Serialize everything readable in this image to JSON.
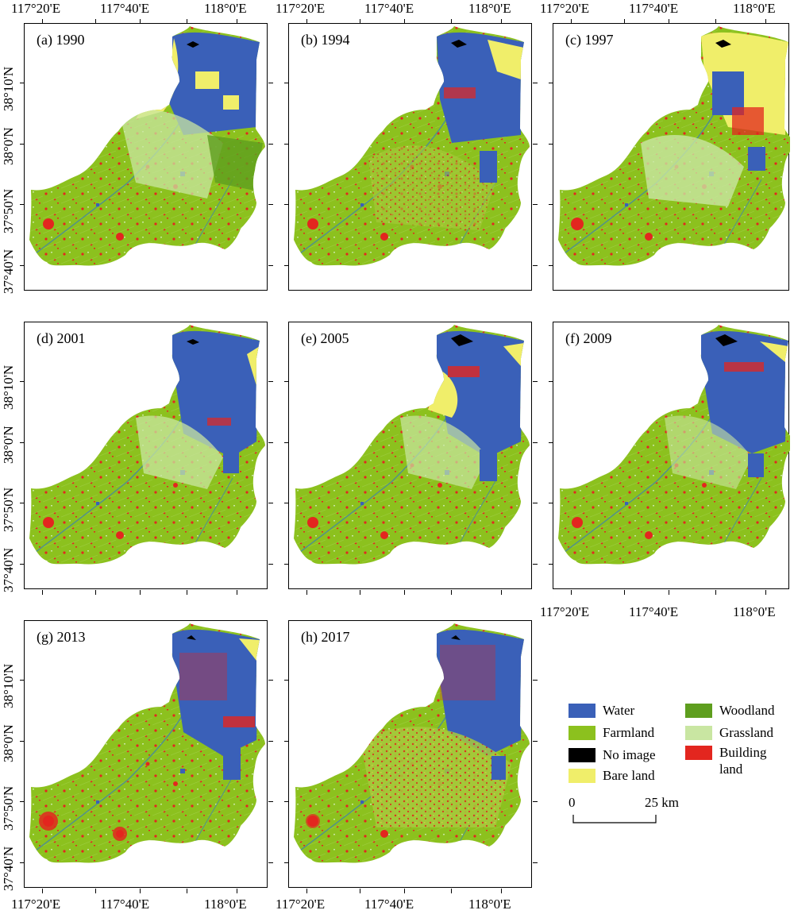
{
  "figure": {
    "panels": [
      {
        "label": "(a) 1990"
      },
      {
        "label": "(b) 1994"
      },
      {
        "label": "(c) 1997"
      },
      {
        "label": "(d) 2001"
      },
      {
        "label": "(e) 2005"
      },
      {
        "label": "(f) 2009"
      },
      {
        "label": "(g) 2013"
      },
      {
        "label": "(h) 2017"
      }
    ],
    "lon_ticks": [
      "117°20'E",
      "117°40'E",
      "118°0'E"
    ],
    "lat_ticks": [
      "37°40'N",
      "37°50'N",
      "38°0'N",
      "38°10'N"
    ]
  },
  "legend": {
    "items": [
      {
        "label": "Water",
        "color": "#3a60b8"
      },
      {
        "label": "Farmland",
        "color": "#8cc11e"
      },
      {
        "label": "No image",
        "color": "#000000"
      },
      {
        "label": "Bare land",
        "color": "#f0ee6a"
      },
      {
        "label": "Woodland",
        "color": "#5e9e1e"
      },
      {
        "label": "Grassland",
        "color": "#c9e6a2"
      },
      {
        "label": "Building",
        "color": "#e3261f"
      }
    ],
    "building_line2": "land"
  },
  "scale_bar": {
    "start": "0",
    "end": "25 km"
  }
}
